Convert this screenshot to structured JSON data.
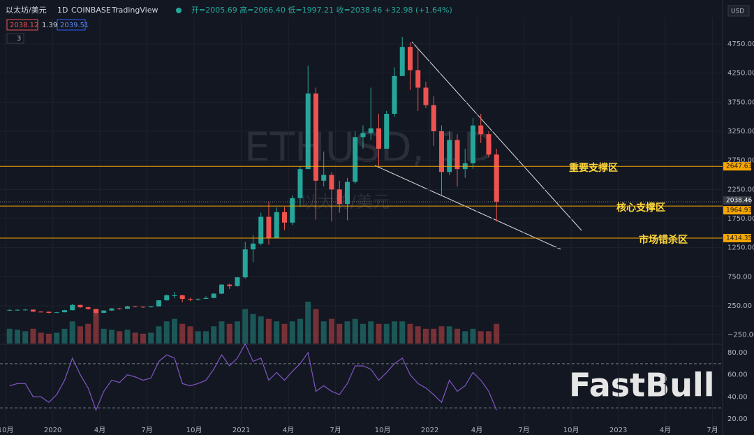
{
  "header": {
    "symbol": "以太坊/美元",
    "interval": "1D",
    "exchange": "COINBASE",
    "source": "TradingView",
    "stats": "开=2005.69 高=2066.40 低=1997.21 收=2038.46 +32.98 (+1.64%)",
    "bid": "2038.12",
    "spread": "1.39",
    "ask": "2039.51",
    "indicators": "3",
    "currency": "USD"
  },
  "watermark": {
    "symbol": "ETHUSD, 1D",
    "name": "以太坊/美元",
    "brand": "FastBull"
  },
  "chart_data": {
    "type": "candlestick",
    "x": [
      0.25,
      0.75,
      1.25,
      1.75,
      2.25,
      2.75,
      3.25,
      3.75,
      4.25,
      4.75,
      5.25,
      5.75,
      6.25,
      6.75,
      7.25,
      7.75,
      8.25,
      8.75,
      9.25,
      9.75,
      10.25,
      10.75,
      11.25,
      11.75,
      12.25,
      12.75,
      13.25,
      13.75,
      14.25,
      14.75,
      15.25,
      15.75,
      16.25,
      16.75,
      17.25,
      17.75,
      18.25,
      18.75,
      19.25,
      19.75,
      20.25,
      20.75,
      21.25,
      21.75,
      22.25,
      22.75,
      23.25,
      23.75,
      24.25,
      24.75,
      25.25,
      25.75,
      26.25,
      26.75,
      27.25,
      27.75,
      28.25,
      28.75,
      29.25,
      29.75,
      30.25,
      30.75,
      31.25
    ],
    "open": [
      175,
      180,
      182,
      185,
      150,
      148,
      130,
      140,
      175,
      265,
      225,
      195,
      130,
      170,
      205,
      200,
      240,
      235,
      225,
      240,
      345,
      430,
      430,
      370,
      360,
      370,
      385,
      460,
      615,
      590,
      740,
      1220,
      1320,
      1780,
      1420,
      1860,
      1680,
      2100,
      2600,
      3900,
      2400,
      2500,
      2250,
      2000,
      2380,
      3150,
      3220,
      3300,
      2950,
      3550,
      4200,
      4700,
      4300,
      4000,
      3700,
      3250,
      2550,
      3100,
      2600,
      2700,
      3350,
      3200,
      2850
    ],
    "high": [
      192,
      197,
      195,
      190,
      155,
      150,
      145,
      180,
      285,
      270,
      235,
      200,
      175,
      215,
      215,
      250,
      250,
      240,
      245,
      350,
      445,
      490,
      440,
      390,
      380,
      415,
      470,
      620,
      630,
      750,
      1350,
      1470,
      1850,
      2040,
      1940,
      1950,
      2150,
      2650,
      4380,
      4000,
      2900,
      2550,
      2400,
      2450,
      3250,
      3350,
      4000,
      3550,
      3600,
      4350,
      4870,
      4780,
      4650,
      4100,
      3850,
      3350,
      3250,
      3200,
      2950,
      3480,
      3550,
      3250,
      2950
    ],
    "low": [
      165,
      168,
      170,
      140,
      140,
      120,
      125,
      138,
      172,
      215,
      185,
      90,
      125,
      160,
      185,
      195,
      225,
      215,
      220,
      235,
      340,
      380,
      310,
      330,
      340,
      365,
      380,
      450,
      540,
      580,
      720,
      1000,
      1290,
      1300,
      1410,
      1550,
      1640,
      1950,
      2600,
      1730,
      2300,
      1700,
      1850,
      1720,
      2350,
      2950,
      3100,
      2650,
      2950,
      3500,
      4200,
      3960,
      3600,
      3650,
      3000,
      2150,
      2500,
      2300,
      2450,
      2600,
      3050,
      2800,
      1700
    ],
    "close": [
      180,
      182,
      185,
      150,
      148,
      130,
      140,
      175,
      265,
      225,
      195,
      130,
      170,
      205,
      200,
      240,
      235,
      225,
      240,
      345,
      430,
      430,
      370,
      360,
      370,
      385,
      460,
      615,
      590,
      740,
      1220,
      1320,
      1780,
      1420,
      1860,
      1680,
      2100,
      2600,
      3900,
      2400,
      2500,
      2250,
      2000,
      2380,
      3150,
      3220,
      3300,
      2950,
      3550,
      4200,
      4700,
      4300,
      4000,
      3700,
      3250,
      2550,
      3100,
      2600,
      2700,
      3350,
      3200,
      2850,
      2038
    ],
    "volume": [
      30,
      28,
      25,
      30,
      22,
      20,
      22,
      30,
      45,
      35,
      40,
      70,
      30,
      28,
      25,
      28,
      22,
      20,
      22,
      35,
      45,
      50,
      40,
      35,
      25,
      25,
      35,
      45,
      40,
      45,
      70,
      60,
      55,
      50,
      45,
      40,
      45,
      50,
      85,
      70,
      45,
      50,
      40,
      45,
      50,
      40,
      45,
      40,
      40,
      45,
      45,
      40,
      35,
      30,
      30,
      35,
      35,
      30,
      25,
      30,
      25,
      25,
      40
    ],
    "up_color": "#26a69a",
    "down_color": "#ef5350",
    "xlim": [
      -0.36,
      45.64
    ],
    "xticks": [
      {
        "value": 0,
        "label": "10月"
      },
      {
        "value": 3,
        "label": "2020"
      },
      {
        "value": 6,
        "label": "4月"
      },
      {
        "value": 9,
        "label": "7月"
      },
      {
        "value": 12,
        "label": "10月"
      },
      {
        "value": 15,
        "label": "2021"
      },
      {
        "value": 18,
        "label": "4月"
      },
      {
        "value": 21,
        "label": "7月"
      },
      {
        "value": 24,
        "label": "10月"
      },
      {
        "value": 27,
        "label": "2022"
      },
      {
        "value": 30,
        "label": "4月"
      },
      {
        "value": 33,
        "label": "7月"
      },
      {
        "value": 36,
        "label": "10月"
      },
      {
        "value": 39,
        "label": "2023"
      },
      {
        "value": 42,
        "label": "4月"
      },
      {
        "value": 45,
        "label": "7月"
      }
    ],
    "ylim": [
      -398,
      5206
    ],
    "yticks": [
      {
        "value": -250,
        "label": "−250.00"
      },
      {
        "value": 250,
        "label": "250.00"
      },
      {
        "value": 750,
        "label": "750.00"
      },
      {
        "value": 1250,
        "label": "1250.00"
      },
      {
        "value": 1750,
        "label": "1750.00"
      },
      {
        "value": 2250,
        "label": "2250.00"
      },
      {
        "value": 2750,
        "label": "2750.00"
      },
      {
        "value": 3250,
        "label": "3250.00"
      },
      {
        "value": 3750,
        "label": "3750.00"
      },
      {
        "value": 4250,
        "label": "4250.00"
      },
      {
        "value": 4750,
        "label": "4750.00"
      }
    ],
    "grid": true,
    "last_price": 2038.46,
    "levels": [
      {
        "value": 2647.63,
        "name": "重要支撑区"
      },
      {
        "value": 1964.93,
        "name": "核心支撑区"
      },
      {
        "value": 1414.35,
        "name": "市场错杀区"
      }
    ],
    "level_color": "#f7a600",
    "rsi": {
      "values": [
        50,
        52,
        52,
        40,
        40,
        35,
        42,
        55,
        75,
        60,
        48,
        28,
        45,
        55,
        53,
        60,
        58,
        55,
        57,
        72,
        78,
        75,
        52,
        50,
        52,
        55,
        65,
        78,
        68,
        75,
        88,
        72,
        75,
        55,
        62,
        55,
        63,
        70,
        80,
        45,
        50,
        45,
        42,
        52,
        68,
        68,
        65,
        55,
        62,
        70,
        75,
        60,
        52,
        48,
        42,
        35,
        55,
        45,
        50,
        62,
        55,
        45,
        28
      ],
      "color": "#7e57c2",
      "ylim": [
        13.7,
        86.3
      ],
      "yticks": [
        {
          "value": 20,
          "label": "20.00"
        },
        {
          "value": 40,
          "label": "40.00"
        },
        {
          "value": 60,
          "label": "60.00"
        },
        {
          "value": 80,
          "label": "80.00"
        }
      ],
      "bands": [
        30,
        70
      ]
    }
  }
}
